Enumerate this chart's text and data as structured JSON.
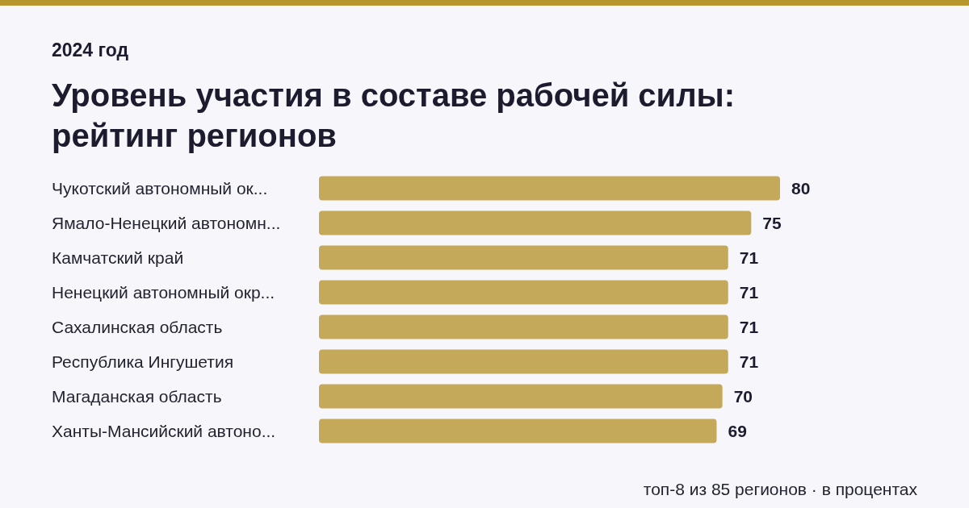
{
  "chart_data": {
    "type": "bar",
    "orientation": "horizontal",
    "subtitle": "2024 год",
    "title": "Уровень участия в составе рабочей силы: рейтинг регионов",
    "categories": [
      "Чукотский автономный ок...",
      "Ямало-Ненецкий автономн...",
      "Камчатский край",
      "Ненецкий автономный окр...",
      "Сахалинская область",
      "Республика Ингушетия",
      "Магаданская область",
      "Ханты-Мансийский автоно..."
    ],
    "values": [
      80,
      75,
      71,
      71,
      71,
      71,
      70,
      69
    ],
    "color": "#c5a95a",
    "data_labels": true,
    "annotations": [
      "топ-8 из 85 регионов · в процентах"
    ]
  }
}
